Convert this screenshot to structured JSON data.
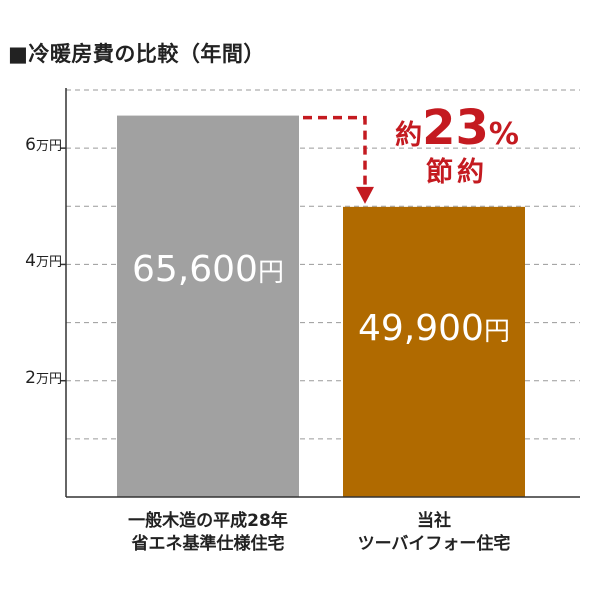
{
  "chart_data": {
    "type": "bar",
    "title": "■冷暖房費の比較（年間）",
    "categories": [
      {
        "line1": "一般木造の平成28年",
        "line2": "省エネ基準仕様住宅"
      },
      {
        "line1": "当社",
        "line2": "ツーバイフォー住宅"
      }
    ],
    "values": [
      65600,
      49900
    ],
    "value_labels": [
      {
        "number": "65,600",
        "unit": "円"
      },
      {
        "number": "49,900",
        "unit": "円"
      }
    ],
    "bar_colors": [
      "#a1a1a1",
      "#b06a00"
    ],
    "ylim": [
      0,
      70000
    ],
    "gridline_values": [
      10000,
      20000,
      30000,
      40000,
      50000,
      60000,
      70000
    ],
    "y_ticks": [
      {
        "value": 20000,
        "number": "2",
        "unit": "万円"
      },
      {
        "value": 40000,
        "number": "4",
        "unit": "万円"
      },
      {
        "value": 60000,
        "number": "6",
        "unit": "万円"
      }
    ],
    "grid": true,
    "annotation": {
      "prefix": "約",
      "number": "23",
      "percent": "%",
      "line2": "節約",
      "color": "#c41a20"
    }
  }
}
